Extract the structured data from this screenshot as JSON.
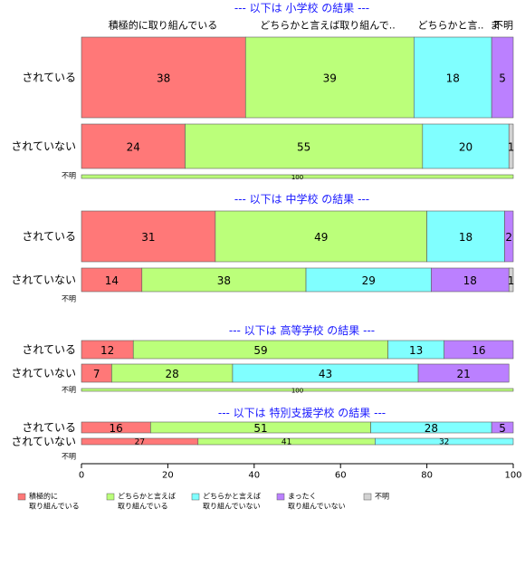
{
  "chart_data": {
    "type": "bar",
    "orientation": "horizontal-stacked",
    "xlim": [
      0,
      100
    ],
    "x_ticks": [
      "0",
      "20",
      "40",
      "60",
      "80",
      "100"
    ],
    "column_headers": [
      "積極的に取り組んでいる",
      "どちらかと言えば取り組んで..",
      "どちらかと言..",
      "ま",
      "不明"
    ],
    "legend": {
      "placement": "bottom",
      "items": [
        {
          "label_lines": [
            "積極的に",
            "取り組んでいる"
          ],
          "color": "#ff7878"
        },
        {
          "label_lines": [
            "どちらかと言えば",
            "取り組んでいる"
          ],
          "color": "#bbff7a"
        },
        {
          "label_lines": [
            "どちらかと言えば",
            "取り組んでいない"
          ],
          "color": "#80ffff"
        },
        {
          "label_lines": [
            "まったく",
            "取り組んでいない"
          ],
          "color": "#bb80ff"
        },
        {
          "label_lines": [
            "不明"
          ],
          "color": "#d3d3d3"
        }
      ]
    },
    "sections": [
      {
        "title": "--- 以下は 小学校 の結果 ---",
        "rows": [
          {
            "label": "されている",
            "values": [
              38,
              39,
              18,
              5,
              0
            ],
            "labels": [
              "38",
              "39",
              "18",
              "5",
              ""
            ]
          },
          {
            "label": "されていない",
            "values": [
              24,
              55,
              20,
              0,
              1
            ],
            "labels": [
              "24",
              "55",
              "20",
              "",
              "1"
            ]
          },
          {
            "label": "不明",
            "values": [
              0,
              100,
              0,
              0,
              0
            ],
            "labels": [
              "",
              "100",
              "",
              "",
              ""
            ]
          }
        ]
      },
      {
        "title": "--- 以下は 中学校 の結果 ---",
        "rows": [
          {
            "label": "されている",
            "values": [
              31,
              49,
              18,
              2,
              0
            ],
            "labels": [
              "31",
              "49",
              "18",
              "2",
              ""
            ]
          },
          {
            "label": "されていない",
            "values": [
              14,
              38,
              29,
              18,
              1
            ],
            "labels": [
              "14",
              "38",
              "29",
              "18",
              "1"
            ]
          },
          {
            "label": "不明",
            "values": [
              0,
              0,
              0,
              0,
              0
            ],
            "labels": [
              "",
              "",
              "",
              "",
              ""
            ]
          }
        ]
      },
      {
        "title": "--- 以下は 高等学校 の結果 ---",
        "rows": [
          {
            "label": "されている",
            "values": [
              12,
              59,
              13,
              16,
              0
            ],
            "labels": [
              "12",
              "59",
              "13",
              "16",
              ""
            ]
          },
          {
            "label": "されていない",
            "values": [
              7,
              28,
              43,
              21,
              0
            ],
            "labels": [
              "7",
              "28",
              "43",
              "21",
              ""
            ]
          },
          {
            "label": "不明",
            "values": [
              0,
              100,
              0,
              0,
              0
            ],
            "labels": [
              "",
              "100",
              "",
              "",
              ""
            ]
          }
        ]
      },
      {
        "title": "--- 以下は 特別支援学校 の結果 ---",
        "rows": [
          {
            "label": "されている",
            "values": [
              16,
              51,
              28,
              5,
              0
            ],
            "labels": [
              "16",
              "51",
              "28",
              "5",
              ""
            ]
          },
          {
            "label": "されていない",
            "values": [
              27,
              41,
              32,
              0,
              0
            ],
            "labels": [
              "27",
              "41",
              "32",
              "",
              ""
            ]
          },
          {
            "label": "不明",
            "values": [
              0,
              0,
              0,
              0,
              0
            ],
            "labels": [
              "",
              "",
              "",
              "",
              ""
            ]
          }
        ]
      }
    ]
  }
}
